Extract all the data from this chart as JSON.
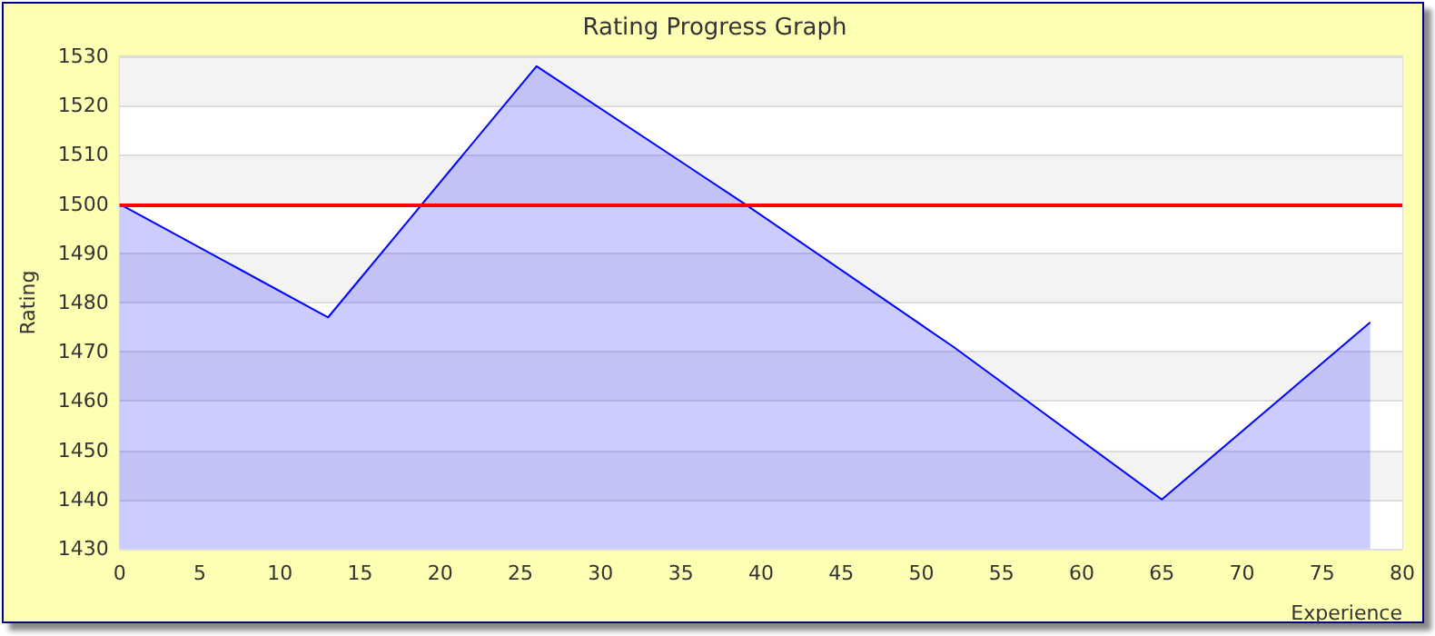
{
  "chart_data": {
    "type": "area",
    "title": "Rating Progress Graph",
    "xlabel": "Experience",
    "ylabel": "Rating",
    "x": [
      0,
      13,
      26,
      39,
      52,
      65,
      78
    ],
    "series": [
      {
        "color": "#0000ff",
        "values": [
          1500,
          1477,
          1528,
          1500,
          1471,
          1440,
          1476
        ]
      }
    ],
    "xlim": [
      0,
      80
    ],
    "xticks": [
      0,
      5,
      10,
      15,
      20,
      25,
      30,
      35,
      40,
      45,
      50,
      55,
      60,
      65,
      70,
      75,
      80
    ],
    "ylim": [
      1430,
      1530
    ],
    "yticks": [
      1430,
      1440,
      1450,
      1460,
      1470,
      1480,
      1490,
      1500,
      1510,
      1520,
      1530
    ],
    "ref_lines": [
      {
        "axis": "y",
        "value": 1500,
        "color": "#ff0000"
      }
    ],
    "grid": "y"
  }
}
